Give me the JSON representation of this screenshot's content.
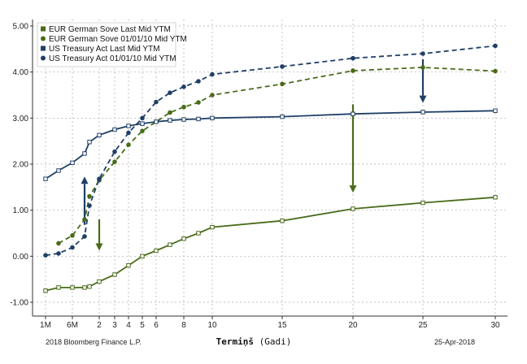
{
  "chart_data": {
    "type": "line",
    "xlabel": "Termiņš",
    "xlabel_suffix": "(Gadi)",
    "x_tick_labels": [
      "1M",
      "6M",
      "2",
      "3",
      "4",
      "5",
      "6",
      "8",
      "10",
      "15",
      "20",
      "25",
      "30"
    ],
    "y_tick_labels": [
      "5.00",
      "4.00",
      "3.00",
      "2.00",
      "1.00",
      "0.00",
      "-1.00"
    ],
    "ylim": [
      -1.3,
      5.2
    ],
    "grid": true,
    "legend_position": "top-left",
    "series": [
      {
        "name": "EUR German Sove Last Mid YTM",
        "color": "#4a6b1a",
        "dash": false,
        "marker": "square-open",
        "x": [
          "1M",
          "3M",
          "6M",
          "9M",
          "1",
          "2",
          "3",
          "4",
          "5",
          "6",
          "7",
          "8",
          "9",
          "10",
          "15",
          "20",
          "25",
          "30"
        ],
        "y": [
          -0.75,
          -0.68,
          -0.68,
          -0.68,
          -0.66,
          -0.55,
          -0.4,
          -0.2,
          0.0,
          0.12,
          0.25,
          0.38,
          0.5,
          0.63,
          0.77,
          1.03,
          1.16,
          1.28
        ]
      },
      {
        "name": "EUR German Sove 01/01/10 Mid YTM",
        "color": "#4a6b1a",
        "dash": true,
        "marker": "circle",
        "x": [
          "3M",
          "6M",
          "9M",
          "1",
          "2",
          "3",
          "4",
          "5",
          "6",
          "7",
          "8",
          "9",
          "10",
          "15",
          "20",
          "25",
          "30"
        ],
        "y": [
          0.28,
          0.45,
          0.8,
          1.3,
          1.65,
          2.05,
          2.42,
          2.72,
          2.92,
          3.12,
          3.24,
          3.34,
          3.5,
          3.74,
          4.03,
          4.1,
          4.02
        ]
      },
      {
        "name": "US Treasury Act Last Mid YTM",
        "color": "#1f3f66",
        "dash": false,
        "marker": "square-open",
        "x": [
          "1M",
          "3M",
          "6M",
          "9M",
          "1",
          "2",
          "3",
          "4",
          "5",
          "6",
          "7",
          "8",
          "9",
          "10",
          "15",
          "20",
          "25",
          "30"
        ],
        "y": [
          1.68,
          1.86,
          2.03,
          2.23,
          2.48,
          2.63,
          2.75,
          2.83,
          2.88,
          2.92,
          2.95,
          2.97,
          2.98,
          3.0,
          3.03,
          3.09,
          3.13,
          3.16
        ]
      },
      {
        "name": "US Treasury Act 01/01/10 Mid YTM",
        "color": "#1f3f66",
        "dash": true,
        "marker": "circle",
        "x": [
          "1M",
          "3M",
          "6M",
          "9M",
          "1",
          "2",
          "3",
          "4",
          "5",
          "6",
          "7",
          "8",
          "9",
          "10",
          "15",
          "20",
          "25",
          "30"
        ],
        "y": [
          0.02,
          0.06,
          0.19,
          0.43,
          1.1,
          1.68,
          2.27,
          2.68,
          3.0,
          3.35,
          3.55,
          3.68,
          3.8,
          3.95,
          4.12,
          4.3,
          4.4,
          4.57
        ]
      }
    ],
    "annotations": [
      {
        "type": "arrow",
        "color": "#1f3f66",
        "x": "9M",
        "from": 0.68,
        "to": 1.73
      },
      {
        "type": "arrow",
        "color": "#4a6b1a",
        "x": "2",
        "from": 0.8,
        "to": 0.12
      },
      {
        "type": "arrow",
        "color": "#4a6b1a",
        "x": "20",
        "from": 3.3,
        "to": 1.38
      },
      {
        "type": "arrow",
        "color": "#1f3f66",
        "x": "25",
        "from": 4.28,
        "to": 3.33
      }
    ]
  },
  "footer": {
    "left": "2018 Bloomberg Finance L.P.",
    "right": "25-Apr-2018"
  }
}
